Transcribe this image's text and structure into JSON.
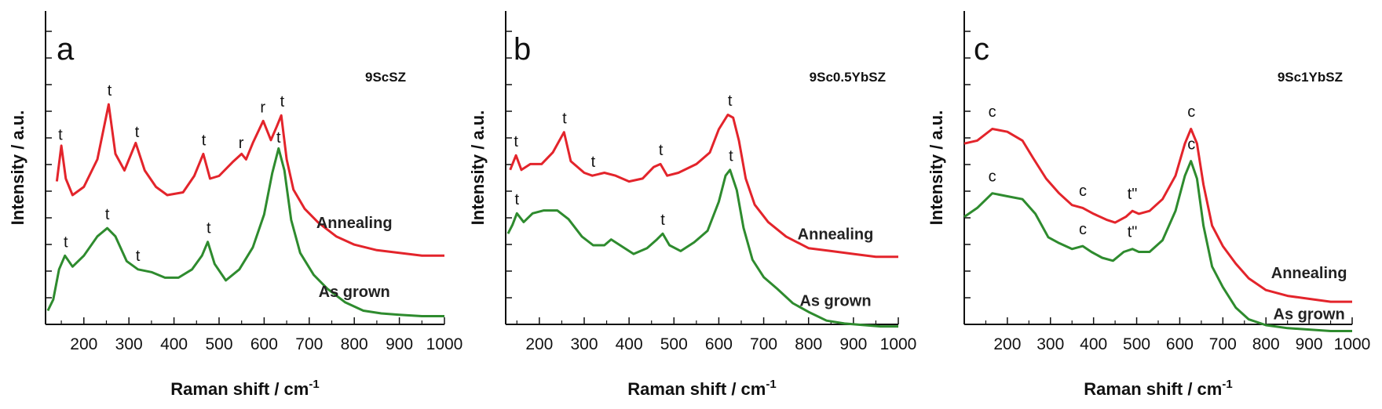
{
  "figure": {
    "ylabel": "Intensity / a.u.",
    "xlabel": "Raman shift / cm",
    "xlabel_superscript": "-1"
  },
  "colors": {
    "annealing": "#e3242b",
    "as_grown": "#2e8b2e",
    "axis": "#111111"
  },
  "chart_data": [
    {
      "type": "line",
      "panel": "a",
      "sample": "9ScSZ",
      "title": "9ScSZ",
      "xlabel": "Raman shift / cm-1",
      "ylabel": "Intensity / a.u.",
      "xlim": [
        115,
        1000
      ],
      "ylim": [
        0,
        100
      ],
      "xticks": [
        200,
        300,
        400,
        500,
        600,
        700,
        800,
        900,
        1000
      ],
      "series": [
        {
          "name": "Annealing",
          "color": "#e3242b",
          "points": [
            [
              140,
              50
            ],
            [
              150,
              63
            ],
            [
              160,
              51
            ],
            [
              175,
              45
            ],
            [
              200,
              48
            ],
            [
              230,
              58
            ],
            [
              255,
              78
            ],
            [
              270,
              60
            ],
            [
              290,
              54
            ],
            [
              315,
              64
            ],
            [
              335,
              54
            ],
            [
              360,
              48
            ],
            [
              385,
              45
            ],
            [
              420,
              46
            ],
            [
              445,
              52
            ],
            [
              465,
              60
            ],
            [
              480,
              51
            ],
            [
              500,
              52
            ],
            [
              530,
              57
            ],
            [
              550,
              60
            ],
            [
              560,
              58
            ],
            [
              575,
              64
            ],
            [
              598,
              72
            ],
            [
              615,
              65
            ],
            [
              628,
              70
            ],
            [
              638,
              74
            ],
            [
              650,
              58
            ],
            [
              665,
              47
            ],
            [
              690,
              40
            ],
            [
              720,
              35
            ],
            [
              760,
              30
            ],
            [
              800,
              27
            ],
            [
              850,
              25
            ],
            [
              900,
              24
            ],
            [
              950,
              23
            ],
            [
              1000,
              23
            ]
          ]
        },
        {
          "name": "As grown",
          "color": "#2e8b2e",
          "points": [
            [
              120,
              3
            ],
            [
              132,
              7
            ],
            [
              145,
              18
            ],
            [
              158,
              23
            ],
            [
              175,
              19
            ],
            [
              200,
              23
            ],
            [
              230,
              30
            ],
            [
              252,
              33
            ],
            [
              270,
              30
            ],
            [
              295,
              21
            ],
            [
              320,
              18
            ],
            [
              350,
              17
            ],
            [
              380,
              15
            ],
            [
              410,
              15
            ],
            [
              440,
              18
            ],
            [
              462,
              23
            ],
            [
              475,
              28
            ],
            [
              490,
              20
            ],
            [
              515,
              14
            ],
            [
              545,
              18
            ],
            [
              575,
              26
            ],
            [
              600,
              38
            ],
            [
              618,
              53
            ],
            [
              632,
              62
            ],
            [
              645,
              54
            ],
            [
              660,
              36
            ],
            [
              680,
              24
            ],
            [
              710,
              16
            ],
            [
              740,
              11
            ],
            [
              780,
              6
            ],
            [
              820,
              3
            ],
            [
              860,
              2
            ],
            [
              900,
              1.5
            ],
            [
              950,
              1
            ],
            [
              1000,
              1
            ]
          ]
        }
      ],
      "annotations": [
        {
          "text": "t",
          "x": 148,
          "y": 64
        },
        {
          "text": "t",
          "x": 257,
          "y": 80
        },
        {
          "text": "t",
          "x": 318,
          "y": 65
        },
        {
          "text": "t",
          "x": 466,
          "y": 62
        },
        {
          "text": "r",
          "x": 549,
          "y": 61
        },
        {
          "text": "r",
          "x": 597,
          "y": 74
        },
        {
          "text": "t",
          "x": 640,
          "y": 76
        },
        {
          "text": "t",
          "x": 160,
          "y": 25
        },
        {
          "text": "t",
          "x": 252,
          "y": 35
        },
        {
          "text": "t",
          "x": 320,
          "y": 20
        },
        {
          "text": "t",
          "x": 477,
          "y": 30
        },
        {
          "text": "t",
          "x": 632,
          "y": 63
        }
      ],
      "series_labels": [
        {
          "text": "Annealing",
          "x": 800,
          "y": 33
        },
        {
          "text": "As grown",
          "x": 800,
          "y": 8
        }
      ]
    },
    {
      "type": "line",
      "panel": "b",
      "sample": "9Sc0.5YbSZ",
      "title": "9Sc0.5YbSZ",
      "xlabel": "Raman shift / cm-1",
      "ylabel": "Intensity / a.u.",
      "xlim": [
        125,
        1000
      ],
      "ylim": [
        0,
        100
      ],
      "xticks": [
        200,
        300,
        400,
        500,
        600,
        700,
        800,
        900,
        1000
      ],
      "series": [
        {
          "name": "Annealing",
          "color": "#e3242b",
          "points": [
            [
              135,
              56
            ],
            [
              148,
              61
            ],
            [
              160,
              56
            ],
            [
              180,
              58
            ],
            [
              205,
              58
            ],
            [
              230,
              62
            ],
            [
              255,
              69
            ],
            [
              270,
              59
            ],
            [
              300,
              55
            ],
            [
              318,
              54
            ],
            [
              345,
              55
            ],
            [
              370,
              54
            ],
            [
              400,
              52
            ],
            [
              430,
              53
            ],
            [
              455,
              57
            ],
            [
              470,
              58
            ],
            [
              485,
              54
            ],
            [
              510,
              55
            ],
            [
              550,
              58
            ],
            [
              580,
              62
            ],
            [
              600,
              70
            ],
            [
              620,
              75
            ],
            [
              632,
              74
            ],
            [
              645,
              66
            ],
            [
              660,
              53
            ],
            [
              680,
              44
            ],
            [
              710,
              38
            ],
            [
              750,
              33
            ],
            [
              800,
              29
            ],
            [
              850,
              28
            ],
            [
              900,
              27
            ],
            [
              950,
              26
            ],
            [
              1000,
              26
            ]
          ]
        },
        {
          "name": "As grown",
          "color": "#2e8b2e",
          "points": [
            [
              130,
              34
            ],
            [
              140,
              37
            ],
            [
              150,
              41
            ],
            [
              165,
              38
            ],
            [
              185,
              41
            ],
            [
              210,
              42
            ],
            [
              240,
              42
            ],
            [
              265,
              39
            ],
            [
              295,
              33
            ],
            [
              320,
              30
            ],
            [
              345,
              30
            ],
            [
              360,
              32
            ],
            [
              380,
              30
            ],
            [
              410,
              27
            ],
            [
              440,
              29
            ],
            [
              462,
              32
            ],
            [
              475,
              34
            ],
            [
              490,
              30
            ],
            [
              515,
              28
            ],
            [
              545,
              31
            ],
            [
              575,
              35
            ],
            [
              600,
              45
            ],
            [
              615,
              54
            ],
            [
              625,
              56
            ],
            [
              640,
              49
            ],
            [
              655,
              36
            ],
            [
              675,
              25
            ],
            [
              700,
              19
            ],
            [
              730,
              15
            ],
            [
              765,
              10
            ],
            [
              800,
              7
            ],
            [
              840,
              4
            ],
            [
              880,
              3
            ],
            [
              920,
              2.5
            ],
            [
              960,
              2
            ],
            [
              1000,
              2
            ]
          ]
        }
      ],
      "annotations": [
        {
          "text": "t",
          "x": 148,
          "y": 63
        },
        {
          "text": "t",
          "x": 256,
          "y": 71
        },
        {
          "text": "t",
          "x": 320,
          "y": 56
        },
        {
          "text": "t",
          "x": 471,
          "y": 60
        },
        {
          "text": "t",
          "x": 625,
          "y": 77
        },
        {
          "text": "t",
          "x": 150,
          "y": 43
        },
        {
          "text": "t",
          "x": 475,
          "y": 36
        },
        {
          "text": "t",
          "x": 627,
          "y": 58
        }
      ],
      "series_labels": [
        {
          "text": "Annealing",
          "x": 860,
          "y": 32
        },
        {
          "text": "As grown",
          "x": 860,
          "y": 9
        }
      ]
    },
    {
      "type": "line",
      "panel": "c",
      "sample": "9Sc1YbSZ",
      "title": "9Sc1YbSZ",
      "xlabel": "Raman shift / cm-1",
      "ylabel": "Intensity / a.u.",
      "xlim": [
        100,
        1000
      ],
      "ylim": [
        0,
        100
      ],
      "xticks": [
        200,
        300,
        400,
        500,
        600,
        700,
        800,
        900,
        1000
      ],
      "series": [
        {
          "name": "Annealing",
          "color": "#e3242b",
          "points": [
            [
              100,
              66
            ],
            [
              130,
              67
            ],
            [
              165,
              71
            ],
            [
              200,
              70
            ],
            [
              235,
              67
            ],
            [
              260,
              61
            ],
            [
              290,
              54
            ],
            [
              320,
              49
            ],
            [
              350,
              45
            ],
            [
              375,
              44
            ],
            [
              400,
              42
            ],
            [
              430,
              40
            ],
            [
              450,
              39
            ],
            [
              475,
              41
            ],
            [
              490,
              43
            ],
            [
              505,
              42
            ],
            [
              530,
              43
            ],
            [
              560,
              47
            ],
            [
              590,
              55
            ],
            [
              612,
              66
            ],
            [
              626,
              71
            ],
            [
              640,
              66
            ],
            [
              655,
              52
            ],
            [
              675,
              38
            ],
            [
              700,
              31
            ],
            [
              730,
              25
            ],
            [
              760,
              20
            ],
            [
              800,
              16
            ],
            [
              850,
              14
            ],
            [
              900,
              13
            ],
            [
              950,
              12
            ],
            [
              1000,
              12
            ]
          ]
        },
        {
          "name": "As grown",
          "color": "#2e8b2e",
          "points": [
            [
              100,
              41
            ],
            [
              130,
              44
            ],
            [
              165,
              49
            ],
            [
              200,
              48
            ],
            [
              235,
              47
            ],
            [
              265,
              42
            ],
            [
              295,
              34
            ],
            [
              320,
              32
            ],
            [
              350,
              30
            ],
            [
              375,
              31
            ],
            [
              395,
              29
            ],
            [
              420,
              27
            ],
            [
              445,
              26
            ],
            [
              470,
              29
            ],
            [
              490,
              30
            ],
            [
              505,
              29
            ],
            [
              530,
              29
            ],
            [
              560,
              33
            ],
            [
              590,
              43
            ],
            [
              612,
              55
            ],
            [
              626,
              60
            ],
            [
              640,
              54
            ],
            [
              655,
              38
            ],
            [
              675,
              24
            ],
            [
              700,
              17
            ],
            [
              730,
              10
            ],
            [
              760,
              6
            ],
            [
              800,
              4
            ],
            [
              850,
              3
            ],
            [
              900,
              2.5
            ],
            [
              950,
              2
            ],
            [
              1000,
              2
            ]
          ]
        }
      ],
      "annotations": [
        {
          "text": "c",
          "x": 165,
          "y": 74
        },
        {
          "text": "c",
          "x": 375,
          "y": 47
        },
        {
          "text": "t\"",
          "x": 490,
          "y": 46
        },
        {
          "text": "c",
          "x": 627,
          "y": 74
        },
        {
          "text": "c",
          "x": 165,
          "y": 52
        },
        {
          "text": "c",
          "x": 375,
          "y": 34
        },
        {
          "text": "t\"",
          "x": 490,
          "y": 33
        },
        {
          "text": "c",
          "x": 627,
          "y": 63
        }
      ],
      "series_labels": [
        {
          "text": "Annealing",
          "x": 900,
          "y": 20
        },
        {
          "text": "As grown",
          "x": 900,
          "y": 6
        }
      ]
    }
  ]
}
